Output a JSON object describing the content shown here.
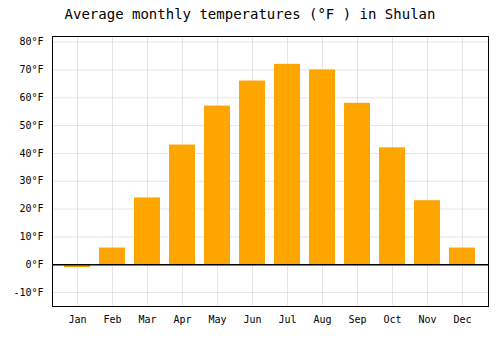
{
  "chart_data": {
    "type": "bar",
    "title": "Average monthly temperatures (°F ) in Shulan",
    "categories": [
      "Jan",
      "Feb",
      "Mar",
      "Apr",
      "May",
      "Jun",
      "Jul",
      "Aug",
      "Sep",
      "Oct",
      "Nov",
      "Dec"
    ],
    "values": [
      -1,
      6,
      24,
      43,
      57,
      66,
      72,
      70,
      58,
      42,
      23,
      6
    ],
    "color": "#FFA500",
    "ylim": [
      -15,
      82
    ],
    "yticks": [
      {
        "value": -10,
        "label": "-10°F"
      },
      {
        "value": 0,
        "label": "0°F"
      },
      {
        "value": 10,
        "label": "10°F"
      },
      {
        "value": 20,
        "label": "20°F"
      },
      {
        "value": 30,
        "label": "30°F"
      },
      {
        "value": 40,
        "label": "40°F"
      },
      {
        "value": 50,
        "label": "50°F"
      },
      {
        "value": 60,
        "label": "60°F"
      },
      {
        "value": 70,
        "label": "70°F"
      },
      {
        "value": 80,
        "label": "80°F"
      }
    ],
    "grid": true
  }
}
